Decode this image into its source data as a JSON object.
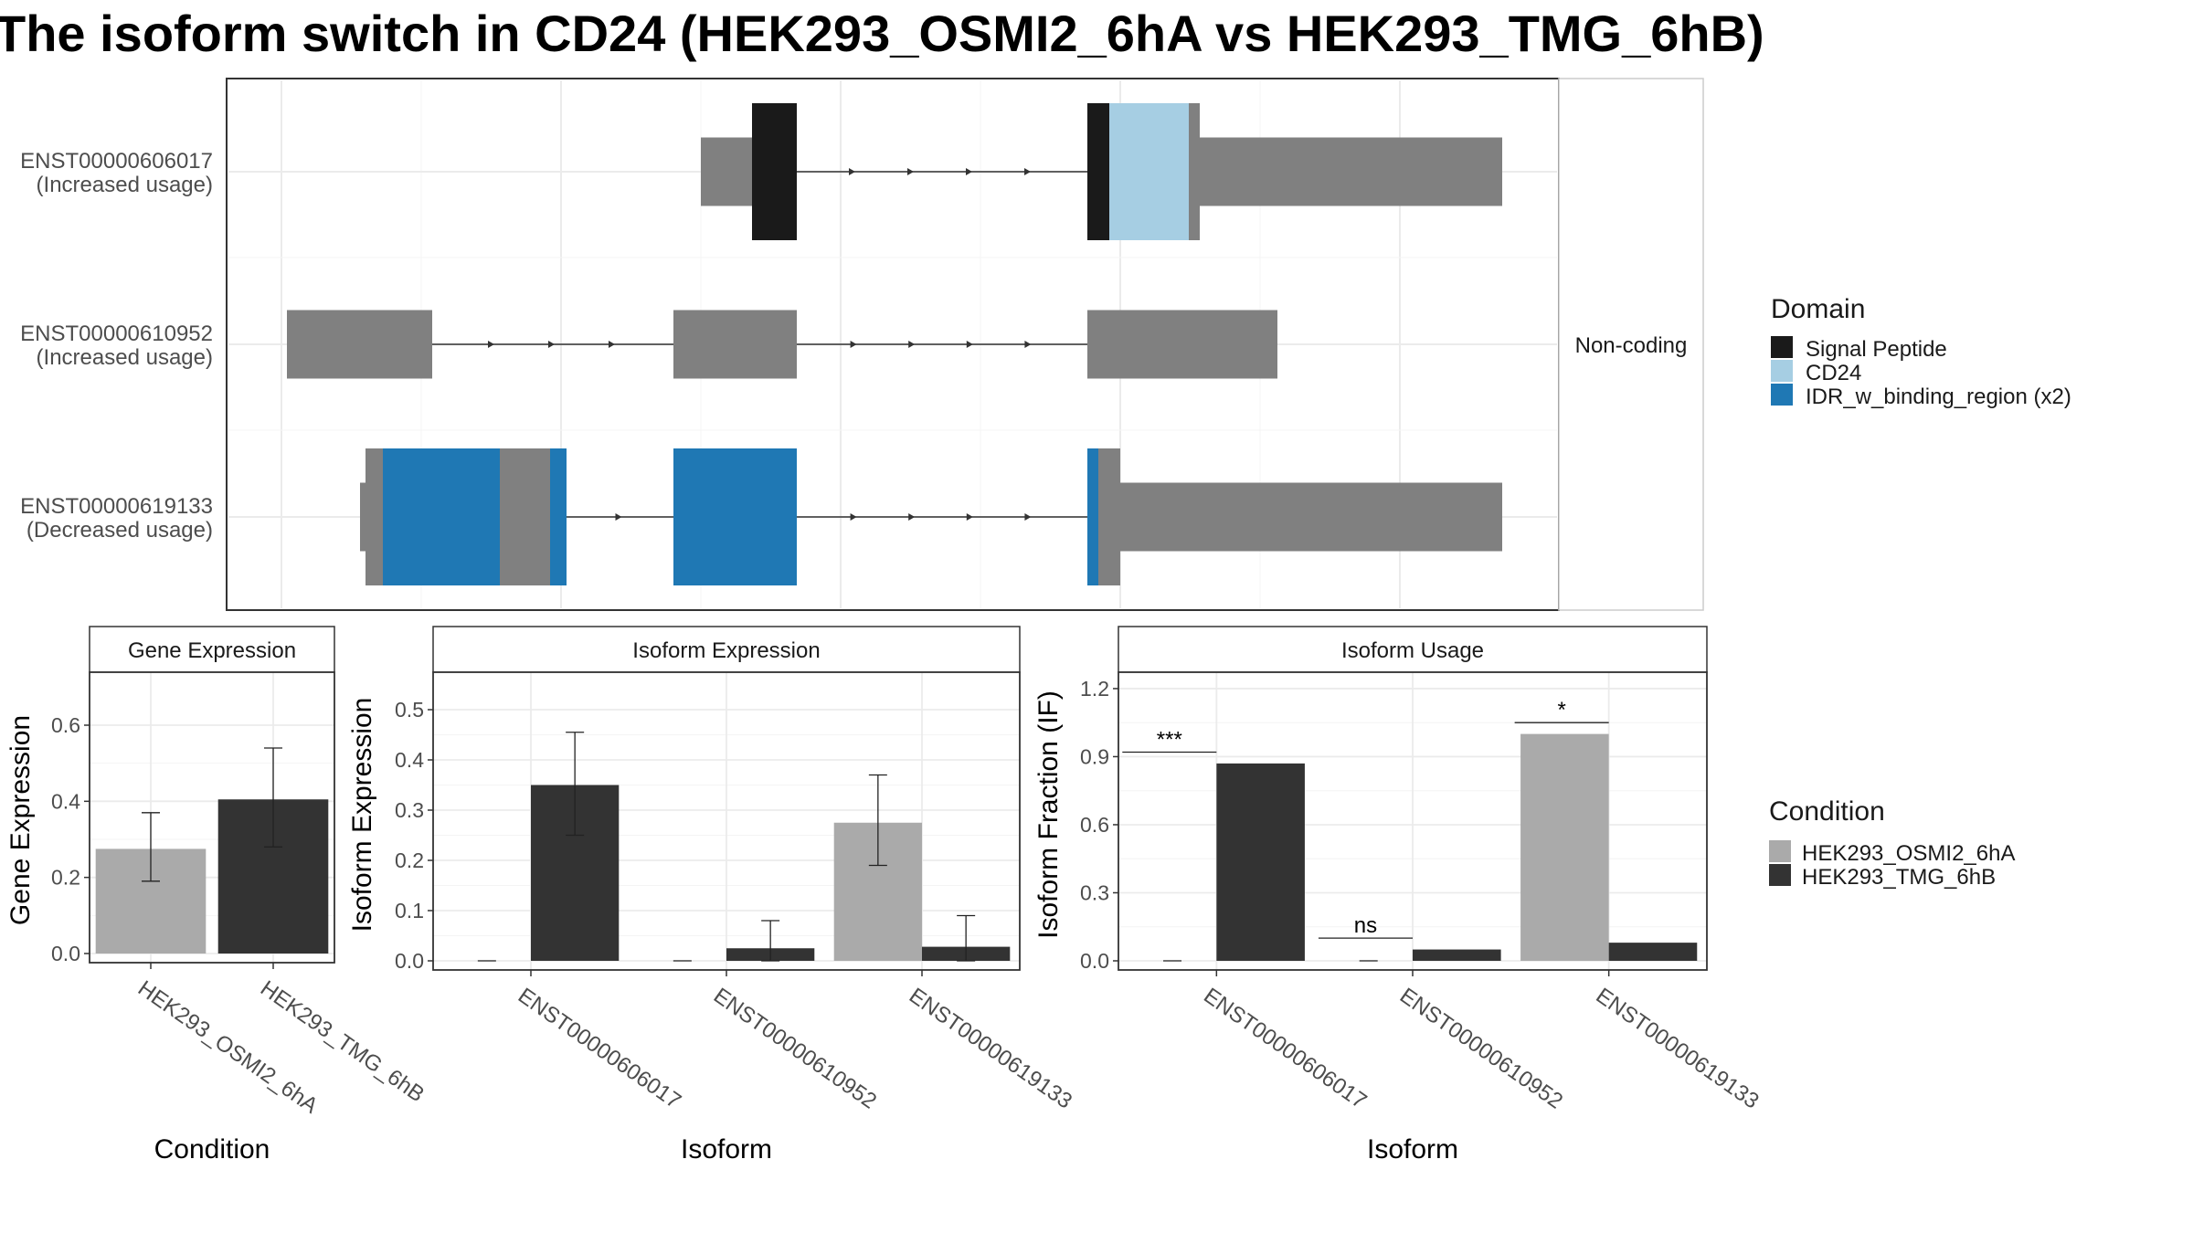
{
  "title": "The isoform switch in CD24 (HEK293_OSMI2_6hA vs HEK293_TMG_6hB)",
  "colors": {
    "exon": "#808080",
    "signal_peptide": "#1a1a1a",
    "cd24": "#a6cee3",
    "idr": "#1f78b4",
    "cond_a": "#aaaaaa",
    "cond_b": "#333333",
    "grid": "#ebebeb",
    "strip": "#ffffff"
  },
  "structure": {
    "strip_label": "Non-coding",
    "transcripts": [
      {
        "id": "ENST00000606017",
        "usage": "(Increased usage)"
      },
      {
        "id": "ENST00000610952",
        "usage": "(Increased usage)"
      },
      {
        "id": "ENST00000619133",
        "usage": "(Decreased usage)"
      }
    ]
  },
  "legend_domain": {
    "title": "Domain",
    "items": [
      {
        "label": "Signal Peptide",
        "color": "#1a1a1a"
      },
      {
        "label": "CD24",
        "color": "#a6cee3"
      },
      {
        "label": "IDR_w_binding_region (x2)",
        "color": "#1f78b4"
      }
    ]
  },
  "legend_condition": {
    "title": "Condition",
    "items": [
      {
        "label": "HEK293_OSMI2_6hA",
        "color": "#aaaaaa"
      },
      {
        "label": "HEK293_TMG_6hB",
        "color": "#333333"
      }
    ]
  },
  "chart_data": [
    {
      "type": "bar",
      "title": "Gene Expression",
      "xlabel": "Condition",
      "ylabel": "Gene Expression",
      "ylim": [
        0,
        0.72
      ],
      "yticks": [
        0.0,
        0.2,
        0.4,
        0.6
      ],
      "tick_labels": [
        "0.0",
        "0.2",
        "0.4",
        "0.6"
      ],
      "categories": [
        "HEK293_OSMI2_6hA",
        "HEK293_TMG_6hB"
      ],
      "values": [
        0.275,
        0.405
      ],
      "errors": [
        [
          0.19,
          0.37
        ],
        [
          0.28,
          0.54
        ]
      ]
    },
    {
      "type": "bar",
      "title": "Isoform Expression",
      "xlabel": "Isoform",
      "ylabel": "Isoform Expression",
      "ylim": [
        0,
        0.56
      ],
      "yticks": [
        0.0,
        0.1,
        0.2,
        0.3,
        0.4,
        0.5
      ],
      "tick_labels": [
        "0.0",
        "0.1",
        "0.2",
        "0.3",
        "0.4",
        "0.5"
      ],
      "categories": [
        "ENST00000606017",
        "ENST00000610952",
        "ENST00000619133"
      ],
      "series": [
        {
          "name": "HEK293_OSMI2_6hA",
          "values": [
            0.0,
            0.0,
            0.275
          ],
          "errors": [
            [
              0.0,
              0.0
            ],
            [
              0.0,
              0.0
            ],
            [
              0.19,
              0.37
            ]
          ]
        },
        {
          "name": "HEK293_TMG_6hB",
          "values": [
            0.35,
            0.025,
            0.028
          ],
          "errors": [
            [
              0.25,
              0.455
            ],
            [
              0.0,
              0.08
            ],
            [
              0.0,
              0.09
            ]
          ]
        }
      ]
    },
    {
      "type": "bar",
      "title": "Isoform Usage",
      "xlabel": "Isoform",
      "ylabel": "Isoform Fraction (IF)",
      "ylim": [
        0,
        1.24
      ],
      "yticks": [
        0.0,
        0.3,
        0.6,
        0.9,
        1.2
      ],
      "tick_labels": [
        "0.0",
        "0.3",
        "0.6",
        "0.9",
        "1.2"
      ],
      "categories": [
        "ENST00000606017",
        "ENST00000610952",
        "ENST00000619133"
      ],
      "series": [
        {
          "name": "HEK293_OSMI2_6hA",
          "values": [
            0.0,
            0.0,
            1.0
          ]
        },
        {
          "name": "HEK293_TMG_6hB",
          "values": [
            0.87,
            0.05,
            0.08
          ]
        }
      ],
      "significance": [
        "***",
        "ns",
        "*"
      ],
      "significance_level": [
        0.92,
        0.1,
        1.05
      ]
    }
  ]
}
